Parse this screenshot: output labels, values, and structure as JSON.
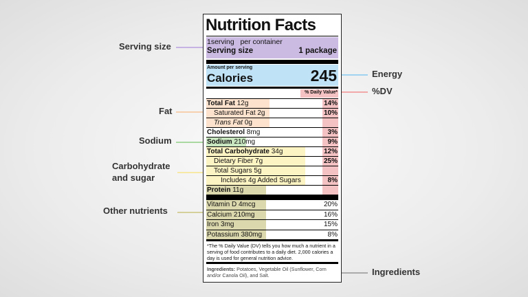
{
  "annotations": {
    "serving_size": "Serving size",
    "fat": "Fat",
    "sodium": "Sodium",
    "carbohydrate": [
      "Carbohydrate",
      "and sugar"
    ],
    "other_nutrients": "Other nutrients",
    "energy": "Energy",
    "dv": "%DV",
    "ingredients": "Ingredients"
  },
  "label": {
    "title": "Nutrition Facts",
    "servings": "1serving   per container",
    "serving_size_label": "Serving size",
    "serving_size_value": "1 package",
    "amount_per_serving": "Amount per serving",
    "calories_label": "Calories",
    "calories_value": "245",
    "dv_header": "% Daily Value*",
    "rows": [
      {
        "name": "Total Fat",
        "amount": "12g",
        "dv": "14%"
      },
      {
        "name": "Saturated Fat",
        "amount": "2g",
        "dv": "10%"
      },
      {
        "name": "Trans Fat",
        "amount": "0g"
      },
      {
        "name": "Cholesterol",
        "amount": "8mg",
        "dv": "3%"
      },
      {
        "name": "Sodium",
        "amount": "210mg",
        "dv": "9%"
      },
      {
        "name": "Total Carbohydrate",
        "amount": "34g",
        "dv": "12%"
      },
      {
        "name": "Dietary Fiber",
        "amount": "7g",
        "dv": "25%"
      },
      {
        "name": "Total Sugars",
        "amount": "5g"
      },
      {
        "name": "Includes 4g Added Sugars",
        "dv": "8%"
      },
      {
        "name": "Protein",
        "amount": "11g"
      }
    ],
    "micros": [
      {
        "name": "Vitamin D",
        "amount": "4mcg",
        "dv": "20%"
      },
      {
        "name": "Calcium",
        "amount": "210mg",
        "dv": "16%"
      },
      {
        "name": "Iron",
        "amount": "3mg",
        "dv": "15%"
      },
      {
        "name": "Potassium",
        "amount": "380mg",
        "dv": "8%"
      }
    ],
    "footnote": "*The % Daily Value (DV) tells you how much a nutrient in a serving of food contributes to a daily diet. 2,000 calories a day is used for general nutrition advice.",
    "ingredients_label": "Ingredients:",
    "ingredients_text": "Potatoes, Vegetable Oil (Sunflower, Corn and/or Canola Oil), and Salt."
  }
}
